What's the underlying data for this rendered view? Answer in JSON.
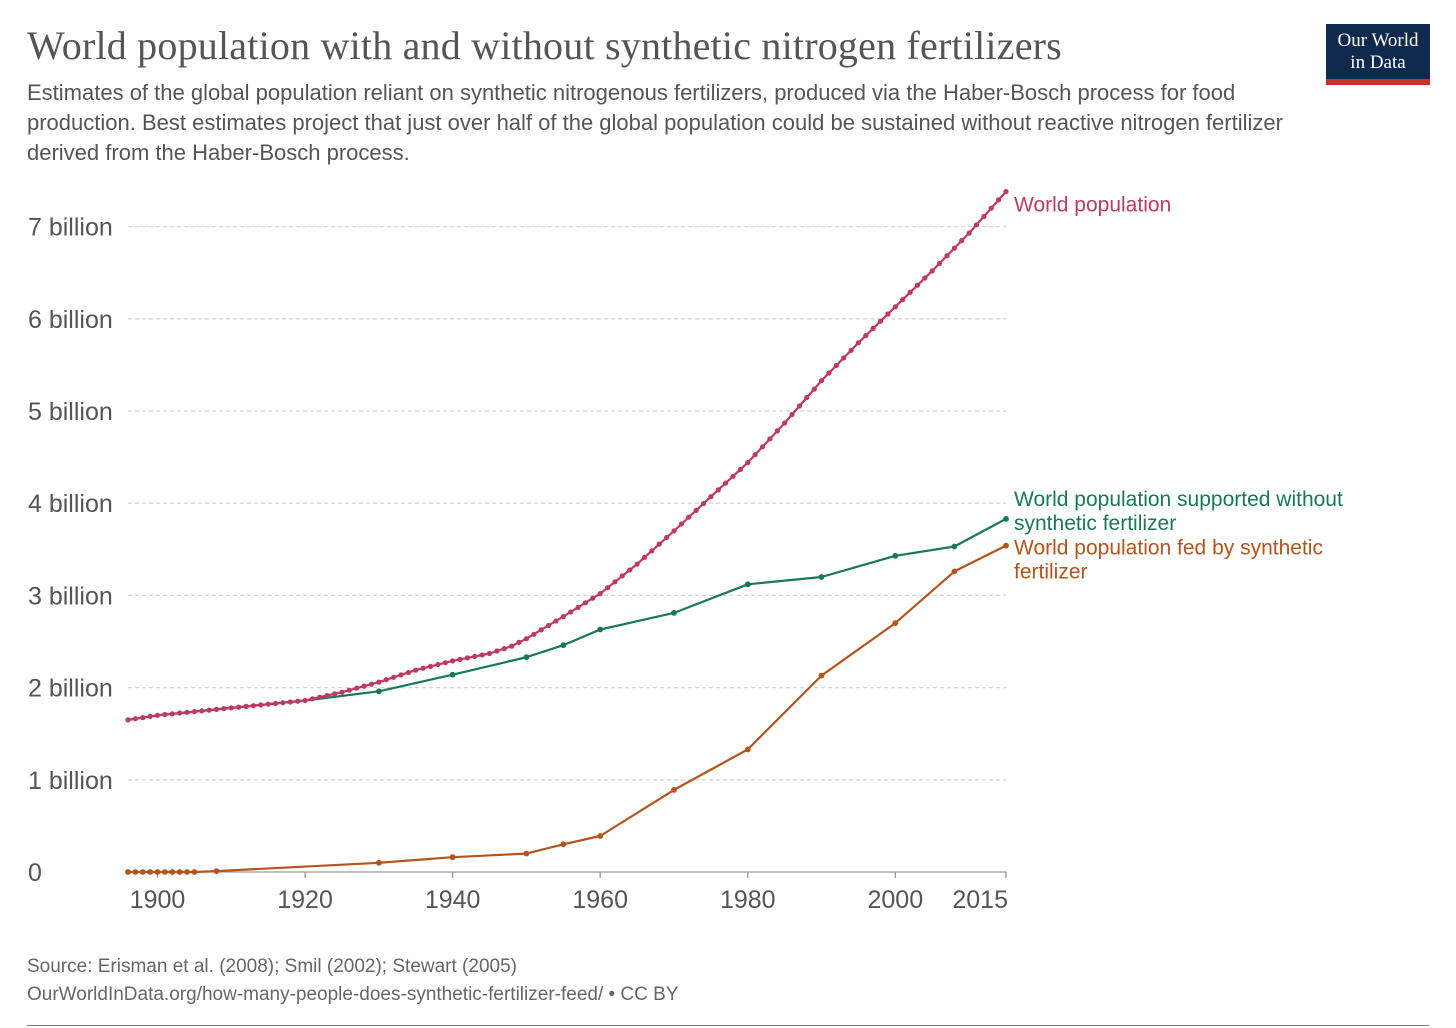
{
  "header": {
    "title": "World population with and without synthetic nitrogen fertilizers",
    "subtitle": "Estimates of the global population reliant on synthetic nitrogenous fertilizers, produced via the Haber-Bosch process for food production. Best estimates project that just over half of the global population could be sustained without reactive nitrogen fertilizer derived from the Haber-Bosch process.",
    "logo_line1": "Our World",
    "logo_line2": "in Data"
  },
  "footer": {
    "source": "Source: Erisman et al. (2008); Smil (2002); Stewart (2005)",
    "url": "OurWorldInData.org/how-many-people-does-synthetic-fertilizer-feed/ • CC BY"
  },
  "chart_data": {
    "type": "line",
    "xlim": [
      1896,
      2015
    ],
    "ylim": [
      0,
      7.5
    ],
    "grid": true,
    "legend": "right, labels at line ends",
    "x_ticks": [
      {
        "value": 1900,
        "label": "1900"
      },
      {
        "value": 1920,
        "label": "1920"
      },
      {
        "value": 1940,
        "label": "1940"
      },
      {
        "value": 1960,
        "label": "1960"
      },
      {
        "value": 1980,
        "label": "1980"
      },
      {
        "value": 2000,
        "label": "2000"
      },
      {
        "value": 2015,
        "label": "2015"
      }
    ],
    "y_ticks": [
      {
        "value": 0,
        "label": "0"
      },
      {
        "value": 1,
        "label": "1 billion"
      },
      {
        "value": 2,
        "label": "2 billion"
      },
      {
        "value": 3,
        "label": "3 billion"
      },
      {
        "value": 4,
        "label": "4 billion"
      },
      {
        "value": 5,
        "label": "5 billion"
      },
      {
        "value": 6,
        "label": "6 billion"
      },
      {
        "value": 7,
        "label": "7 billion"
      }
    ],
    "series": [
      {
        "name": "World population",
        "label_lines": [
          "World population"
        ],
        "color": "#be3a5e",
        "dense_markers": true,
        "points": [
          [
            1896,
            1.65
          ],
          [
            1900,
            1.7
          ],
          [
            1905,
            1.74
          ],
          [
            1910,
            1.78
          ],
          [
            1915,
            1.82
          ],
          [
            1920,
            1.86
          ],
          [
            1925,
            1.95
          ],
          [
            1930,
            2.06
          ],
          [
            1935,
            2.19
          ],
          [
            1940,
            2.29
          ],
          [
            1945,
            2.37
          ],
          [
            1948,
            2.45
          ],
          [
            1950,
            2.53
          ],
          [
            1955,
            2.77
          ],
          [
            1960,
            3.02
          ],
          [
            1965,
            3.34
          ],
          [
            1970,
            3.7
          ],
          [
            1975,
            4.07
          ],
          [
            1980,
            4.44
          ],
          [
            1985,
            4.87
          ],
          [
            1990,
            5.33
          ],
          [
            1995,
            5.74
          ],
          [
            2000,
            6.13
          ],
          [
            2005,
            6.52
          ],
          [
            2010,
            6.93
          ],
          [
            2015,
            7.38
          ]
        ]
      },
      {
        "name": "World population supported without synthetic fertilizer",
        "label_lines": [
          "World population supported without",
          "synthetic fertilizer"
        ],
        "color": "#187a55",
        "dense_markers": false,
        "marker_xs": [
          1930,
          1940,
          1950,
          1955,
          1960,
          1970,
          1980,
          1990,
          2000,
          2008,
          2015
        ],
        "points": [
          [
            1896,
            1.65
          ],
          [
            1900,
            1.7
          ],
          [
            1905,
            1.74
          ],
          [
            1910,
            1.78
          ],
          [
            1915,
            1.82
          ],
          [
            1920,
            1.86
          ],
          [
            1930,
            1.96
          ],
          [
            1940,
            2.14
          ],
          [
            1950,
            2.33
          ],
          [
            1955,
            2.46
          ],
          [
            1960,
            2.63
          ],
          [
            1970,
            2.81
          ],
          [
            1980,
            3.12
          ],
          [
            1990,
            3.2
          ],
          [
            2000,
            3.43
          ],
          [
            2008,
            3.53
          ],
          [
            2015,
            3.83
          ]
        ]
      },
      {
        "name": "World population fed by synthetic fertilizer",
        "label_lines": [
          "World population fed by synthetic",
          "fertilizer"
        ],
        "color": "#b5541c",
        "dense_markers": false,
        "points": [
          [
            1896,
            0
          ],
          [
            1897,
            0
          ],
          [
            1898,
            0
          ],
          [
            1899,
            0
          ],
          [
            1900,
            0
          ],
          [
            1901,
            0
          ],
          [
            1902,
            0
          ],
          [
            1903,
            0
          ],
          [
            1904,
            0
          ],
          [
            1905,
            0
          ],
          [
            1908,
            0.01
          ],
          [
            1930,
            0.1
          ],
          [
            1940,
            0.16
          ],
          [
            1950,
            0.2
          ],
          [
            1955,
            0.3
          ],
          [
            1960,
            0.39
          ],
          [
            1970,
            0.89
          ],
          [
            1980,
            1.33
          ],
          [
            1990,
            2.13
          ],
          [
            2000,
            2.7
          ],
          [
            2008,
            3.26
          ],
          [
            2015,
            3.54
          ]
        ]
      }
    ]
  }
}
